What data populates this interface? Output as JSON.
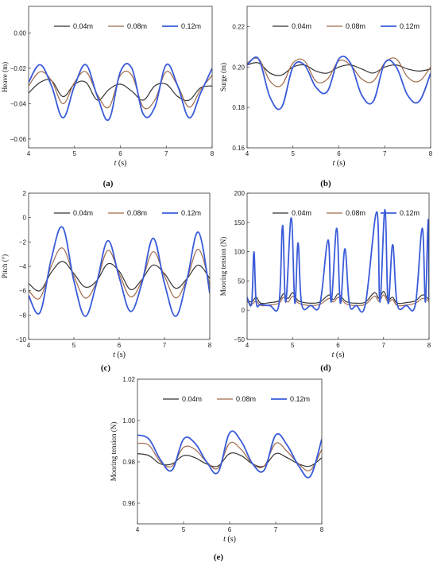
{
  "series_colors": [
    "#333333",
    "#a06a4a",
    "#3a5bd9"
  ],
  "chart_data": [
    {
      "panel_label": "(a)",
      "type": "line",
      "ylabel": "Heave (m)",
      "xlabel": "t (s)",
      "xlim": [
        4,
        8
      ],
      "ylim": [
        -0.065,
        0.015
      ],
      "xticks": [
        4,
        5,
        6,
        7,
        8
      ],
      "yticks": [
        -0.06,
        -0.04,
        -0.02,
        0.0
      ],
      "ytick_labels": [
        "−0.06",
        "−0.04",
        "−0.02",
        "0.00"
      ],
      "legend": [
        "0.04m",
        "0.08m",
        "0.12m"
      ],
      "series": [
        {
          "name": "0.04m",
          "x": [
            4.0,
            4.25,
            4.5,
            4.75,
            5.0,
            5.25,
            5.5,
            5.75,
            6.0,
            6.25,
            6.5,
            6.75,
            7.0,
            7.25,
            7.5,
            7.75,
            8.0
          ],
          "y": [
            -0.034,
            -0.028,
            -0.027,
            -0.036,
            -0.029,
            -0.028,
            -0.038,
            -0.032,
            -0.029,
            -0.033,
            -0.038,
            -0.03,
            -0.029,
            -0.036,
            -0.038,
            -0.031,
            -0.03
          ]
        },
        {
          "name": "0.08m",
          "x": [
            4.0,
            4.25,
            4.5,
            4.75,
            5.0,
            5.25,
            5.5,
            5.75,
            6.0,
            6.25,
            6.5,
            6.75,
            7.0,
            7.25,
            7.5,
            7.75,
            8.0
          ],
          "y": [
            -0.03,
            -0.022,
            -0.027,
            -0.04,
            -0.028,
            -0.022,
            -0.035,
            -0.042,
            -0.024,
            -0.024,
            -0.042,
            -0.038,
            -0.022,
            -0.03,
            -0.042,
            -0.032,
            -0.024
          ]
        },
        {
          "name": "0.12m",
          "x": [
            4.0,
            4.25,
            4.5,
            4.75,
            5.0,
            5.25,
            5.5,
            5.75,
            6.0,
            6.25,
            6.5,
            6.75,
            7.0,
            7.25,
            7.5,
            7.75,
            8.0
          ],
          "y": [
            -0.028,
            -0.018,
            -0.03,
            -0.048,
            -0.03,
            -0.018,
            -0.036,
            -0.049,
            -0.022,
            -0.02,
            -0.046,
            -0.042,
            -0.018,
            -0.03,
            -0.048,
            -0.034,
            -0.02
          ]
        }
      ]
    },
    {
      "panel_label": "(b)",
      "type": "line",
      "ylabel": "Surge (m)",
      "xlabel": "t (s)",
      "xlim": [
        4,
        8
      ],
      "ylim": [
        0.16,
        0.23
      ],
      "xticks": [
        4,
        5,
        6,
        7,
        8
      ],
      "yticks": [
        0.16,
        0.18,
        0.2,
        0.22
      ],
      "ytick_labels": [
        "0.16",
        "0.18",
        "0.20",
        "0.22"
      ],
      "legend": [
        "0.04m",
        "0.08m",
        "0.12m"
      ],
      "series": [
        {
          "name": "0.04m",
          "x": [
            4.0,
            4.25,
            4.5,
            4.75,
            5.0,
            5.25,
            5.5,
            5.75,
            6.0,
            6.25,
            6.5,
            6.75,
            7.0,
            7.25,
            7.5,
            7.75,
            8.0
          ],
          "y": [
            0.201,
            0.202,
            0.197,
            0.196,
            0.2,
            0.201,
            0.198,
            0.197,
            0.2,
            0.201,
            0.199,
            0.197,
            0.2,
            0.201,
            0.199,
            0.198,
            0.199
          ]
        },
        {
          "name": "0.08m",
          "x": [
            4.0,
            4.25,
            4.5,
            4.75,
            5.0,
            5.25,
            5.5,
            5.75,
            6.0,
            6.25,
            6.5,
            6.75,
            7.0,
            7.25,
            7.5,
            7.75,
            8.0
          ],
          "y": [
            0.202,
            0.204,
            0.193,
            0.191,
            0.202,
            0.203,
            0.193,
            0.194,
            0.203,
            0.201,
            0.194,
            0.193,
            0.202,
            0.204,
            0.195,
            0.193,
            0.2
          ]
        },
        {
          "name": "0.12m",
          "x": [
            4.0,
            4.25,
            4.5,
            4.75,
            5.0,
            5.25,
            5.5,
            5.75,
            6.0,
            6.25,
            6.5,
            6.75,
            7.0,
            7.25,
            7.5,
            7.75,
            8.0
          ],
          "y": [
            0.201,
            0.204,
            0.185,
            0.18,
            0.2,
            0.201,
            0.19,
            0.188,
            0.204,
            0.202,
            0.186,
            0.183,
            0.202,
            0.2,
            0.186,
            0.183,
            0.197
          ]
        }
      ]
    },
    {
      "panel_label": "(c)",
      "type": "line",
      "ylabel": "Pitch (°)",
      "xlabel": "t (s)",
      "xlim": [
        4,
        8
      ],
      "ylim": [
        -10,
        2
      ],
      "xticks": [
        4,
        5,
        6,
        7,
        8
      ],
      "yticks": [
        -10,
        -8,
        -6,
        -4,
        -2,
        0,
        2
      ],
      "ytick_labels": [
        "−10",
        "−8",
        "−6",
        "−4",
        "−2",
        "0",
        "2"
      ],
      "legend": [
        "0.04m",
        "0.08m",
        "0.12m"
      ],
      "series": [
        {
          "name": "0.04m",
          "x": [
            4.0,
            4.25,
            4.5,
            4.75,
            5.0,
            5.25,
            5.5,
            5.75,
            6.0,
            6.25,
            6.5,
            6.75,
            7.0,
            7.25,
            7.5,
            7.75,
            8.0
          ],
          "y": [
            -5.4,
            -6.0,
            -4.5,
            -3.6,
            -4.6,
            -5.7,
            -5.2,
            -3.8,
            -4.4,
            -5.9,
            -5.1,
            -3.9,
            -4.6,
            -5.8,
            -5.0,
            -3.9,
            -5.0
          ]
        },
        {
          "name": "0.08m",
          "x": [
            4.0,
            4.25,
            4.5,
            4.75,
            5.0,
            5.25,
            5.5,
            5.75,
            6.0,
            6.25,
            6.5,
            6.75,
            7.0,
            7.25,
            7.5,
            7.75,
            8.0
          ],
          "y": [
            -6.0,
            -6.6,
            -4.0,
            -2.5,
            -4.8,
            -6.6,
            -5.3,
            -2.7,
            -4.6,
            -6.5,
            -5.2,
            -2.8,
            -4.8,
            -6.6,
            -5.0,
            -2.6,
            -5.5
          ]
        },
        {
          "name": "0.12m",
          "x": [
            4.0,
            4.25,
            4.5,
            4.75,
            5.0,
            5.25,
            5.5,
            5.75,
            6.0,
            6.25,
            6.5,
            6.75,
            7.0,
            7.25,
            7.5,
            7.75,
            8.0
          ],
          "y": [
            -6.4,
            -7.8,
            -3.4,
            -0.8,
            -5.2,
            -8.1,
            -5.4,
            -1.9,
            -4.9,
            -7.7,
            -5.4,
            -1.7,
            -5.4,
            -8.1,
            -5.0,
            -1.2,
            -6.2
          ]
        }
      ]
    },
    {
      "panel_label": "(d)",
      "type": "line",
      "ylabel": "Mooring tension (N)",
      "xlabel": "t (s)",
      "xlim": [
        4,
        8
      ],
      "ylim": [
        -50,
        200
      ],
      "xticks": [
        4,
        5,
        6,
        7,
        8
      ],
      "yticks": [
        -50,
        0,
        50,
        100,
        150,
        200
      ],
      "ytick_labels": [
        "−50",
        "0",
        "50",
        "100",
        "150",
        "200"
      ],
      "legend": [
        "0.04m",
        "0.08m",
        "0.12m"
      ],
      "series": [
        {
          "name": "0.04m",
          "x": [
            4.0,
            4.1,
            4.2,
            4.3,
            4.5,
            4.7,
            4.8,
            4.9,
            5.0,
            5.1,
            5.2,
            5.4,
            5.6,
            5.8,
            5.9,
            6.0,
            6.1,
            6.2,
            6.4,
            6.6,
            6.8,
            6.9,
            7.0,
            7.1,
            7.2,
            7.3,
            7.5,
            7.7,
            7.85,
            7.95,
            8.0
          ],
          "y": [
            18,
            14,
            22,
            12,
            13,
            16,
            28,
            20,
            30,
            18,
            14,
            12,
            14,
            26,
            18,
            28,
            20,
            14,
            12,
            14,
            30,
            20,
            32,
            18,
            22,
            12,
            13,
            16,
            26,
            22,
            18
          ]
        },
        {
          "name": "0.08m",
          "x": [
            4.0,
            4.1,
            4.2,
            4.3,
            4.5,
            4.7,
            4.8,
            4.9,
            5.0,
            5.1,
            5.2,
            5.4,
            5.6,
            5.8,
            5.9,
            6.0,
            6.1,
            6.2,
            6.4,
            6.6,
            6.8,
            6.9,
            7.0,
            7.1,
            7.2,
            7.3,
            7.5,
            7.7,
            7.85,
            7.95,
            8.0
          ],
          "y": [
            15,
            10,
            16,
            8,
            9,
            12,
            22,
            14,
            24,
            14,
            10,
            8,
            10,
            20,
            14,
            22,
            16,
            10,
            8,
            10,
            24,
            15,
            26,
            14,
            18,
            8,
            9,
            12,
            20,
            18,
            14
          ]
        },
        {
          "name": "0.12m",
          "x": [
            4.0,
            4.1,
            4.15,
            4.2,
            4.3,
            4.5,
            4.7,
            4.78,
            4.85,
            4.97,
            5.05,
            5.12,
            5.2,
            5.4,
            5.6,
            5.78,
            5.85,
            5.97,
            6.05,
            6.15,
            6.25,
            6.4,
            6.6,
            6.85,
            6.92,
            7.03,
            7.1,
            7.2,
            7.3,
            7.5,
            7.7,
            7.85,
            7.92,
            7.98,
            8.0
          ],
          "y": [
            22,
            12,
            100,
            14,
            10,
            8,
            10,
            145,
            14,
            158,
            12,
            115,
            10,
            8,
            10,
            120,
            14,
            140,
            12,
            105,
            10,
            8,
            10,
            168,
            14,
            172,
            12,
            112,
            10,
            8,
            10,
            140,
            14,
            155,
            20
          ]
        }
      ]
    },
    {
      "panel_label": "(e)",
      "type": "line",
      "ylabel": "Mooring tension (N)",
      "xlabel": "t (s)",
      "xlim": [
        4,
        8
      ],
      "ylim": [
        0.95,
        1.02
      ],
      "xticks": [
        4,
        5,
        6,
        7,
        8
      ],
      "yticks": [
        0.96,
        0.98,
        1.0,
        1.02
      ],
      "ytick_labels": [
        "0.96",
        "0.98",
        "1.00",
        "1.02"
      ],
      "legend": [
        "0.04m",
        "0.08m",
        "0.12m"
      ],
      "series": [
        {
          "name": "0.04m",
          "x": [
            4.0,
            4.25,
            4.5,
            4.75,
            5.0,
            5.25,
            5.5,
            5.75,
            6.0,
            6.25,
            6.5,
            6.75,
            7.0,
            7.25,
            7.5,
            7.75,
            8.0
          ],
          "y": [
            0.984,
            0.983,
            0.979,
            0.979,
            0.983,
            0.982,
            0.979,
            0.978,
            0.984,
            0.983,
            0.979,
            0.978,
            0.984,
            0.982,
            0.979,
            0.978,
            0.982
          ]
        },
        {
          "name": "0.08m",
          "x": [
            4.0,
            4.25,
            4.5,
            4.75,
            5.0,
            5.25,
            5.5,
            5.75,
            6.0,
            6.25,
            6.5,
            6.75,
            7.0,
            7.25,
            7.5,
            7.75,
            8.0
          ],
          "y": [
            0.989,
            0.988,
            0.98,
            0.978,
            0.987,
            0.986,
            0.98,
            0.977,
            0.989,
            0.986,
            0.979,
            0.978,
            0.989,
            0.985,
            0.979,
            0.976,
            0.986
          ]
        },
        {
          "name": "0.12m",
          "x": [
            4.0,
            4.25,
            4.5,
            4.75,
            5.0,
            5.25,
            5.5,
            5.75,
            6.0,
            6.25,
            6.5,
            6.75,
            7.0,
            7.25,
            7.5,
            7.75,
            8.0
          ],
          "y": [
            0.993,
            0.991,
            0.981,
            0.976,
            0.991,
            0.989,
            0.98,
            0.975,
            0.994,
            0.99,
            0.979,
            0.976,
            0.993,
            0.988,
            0.978,
            0.973,
            0.991
          ]
        }
      ]
    }
  ]
}
